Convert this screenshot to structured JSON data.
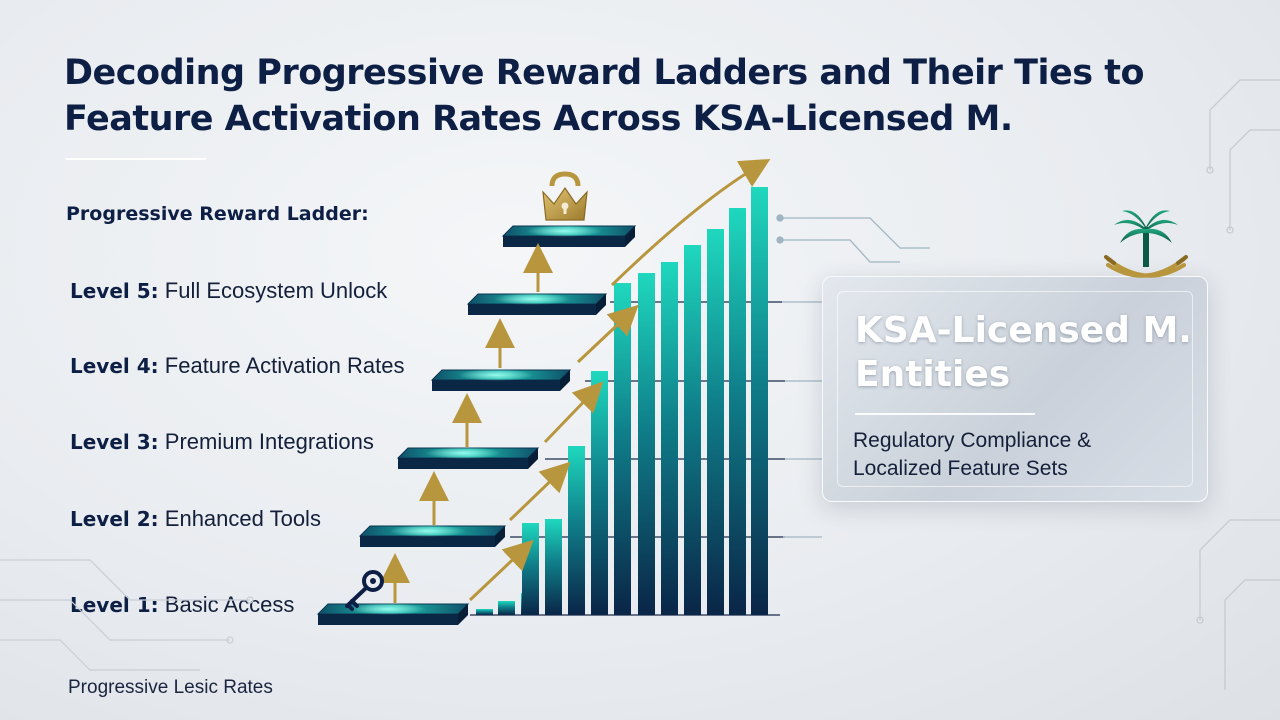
{
  "title": "Decoding Progressive Reward Ladders and Their Ties to Feature Activation Rates Across KSA-Licensed M.",
  "ladder_heading": "Progressive Reward Ladder:",
  "levels": [
    {
      "level": "Level 5:",
      "name": "Full Ecosystem Unlock"
    },
    {
      "level": "Level 4:",
      "name": "Feature Activation Rates"
    },
    {
      "level": "Level 3:",
      "name": "Premium Integrations"
    },
    {
      "level": "Level 2:",
      "name": "Enhanced Tools"
    },
    {
      "level": "Level 1:",
      "name": "Basic Access"
    }
  ],
  "footer": "Progressive Lesic Rates",
  "panel": {
    "title": "KSA-Licensed M. Entities",
    "subtitle": "Regulatory Compliance & Localized Feature Sets"
  },
  "icons": {
    "start": "key-icon",
    "goal": "lock-crown-icon",
    "emblem": "palm-swords-emblem-icon"
  },
  "colors": {
    "navy": "#0e1f45",
    "teal": "#18c9b2",
    "teal_dark": "#0b4a66",
    "gold": "#b8963e"
  }
}
